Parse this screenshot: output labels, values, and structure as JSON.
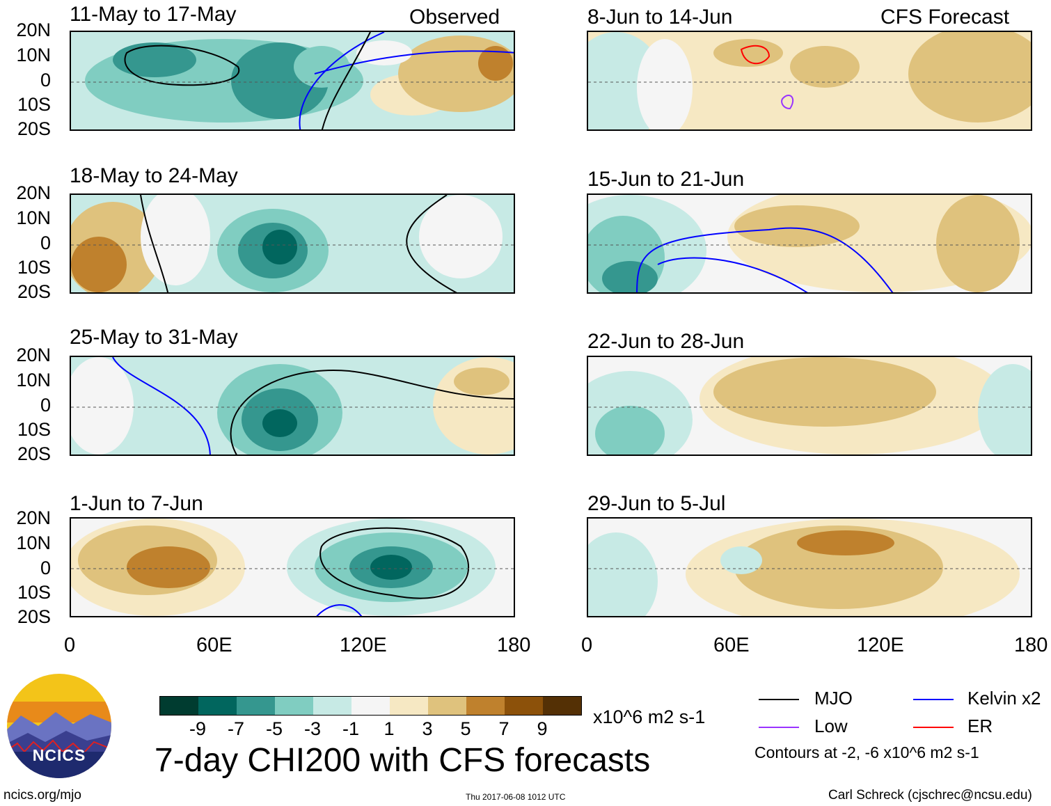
{
  "colors": {
    "scale": [
      "#003c30",
      "#01665e",
      "#35978f",
      "#80cdc1",
      "#c7eae5",
      "#f5f5f5",
      "#f6e8c3",
      "#dfc27d",
      "#bf812d",
      "#8c510a",
      "#543005"
    ],
    "mjo": "#000000",
    "kelvin": "#0000ff",
    "low": "#9933ff",
    "er": "#ff0000"
  },
  "left_column": {
    "header": "Observed",
    "panels": [
      {
        "title": "11-May to 17-May"
      },
      {
        "title": "18-May to 24-May"
      },
      {
        "title": "25-May to 31-May"
      },
      {
        "title": "1-Jun to 7-Jun"
      }
    ]
  },
  "right_column": {
    "header": "CFS Forecast",
    "panels": [
      {
        "title": "8-Jun to 14-Jun"
      },
      {
        "title": "15-Jun to 21-Jun"
      },
      {
        "title": "22-Jun to 28-Jun"
      },
      {
        "title": "29-Jun to 5-Jul"
      }
    ]
  },
  "y_labels": [
    "20N",
    "10N",
    "0",
    "10S",
    "20S"
  ],
  "x_labels": [
    "0",
    "60E",
    "120E",
    "180"
  ],
  "colorbar": {
    "labels": [
      "-9",
      "-7",
      "-5",
      "-3",
      "-1",
      "1",
      "3",
      "5",
      "7",
      "9"
    ],
    "units": "x10^6 m2 s-1"
  },
  "main_title": "7-day CHI200 with CFS forecasts",
  "legend": {
    "mjo": "MJO",
    "kelvin": "Kelvin x2",
    "low": "Low",
    "er": "ER",
    "note": "Contours at -2, -6 x10^6 m2 s-1"
  },
  "footer": {
    "url": "ncics.org/mjo",
    "timestamp": "Thu 2017-06-08 1012 UTC",
    "credit": "Carl Schreck (cjschrec@ncsu.edu)"
  },
  "logo_text": "NCICS"
}
